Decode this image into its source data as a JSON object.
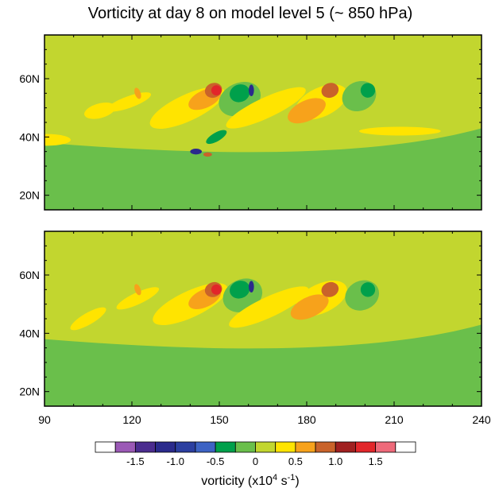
{
  "chart_data": {
    "type": "heatmap",
    "title": "Vorticity at day 8 on model level 5 (~ 850 hPa)",
    "panels": [
      {
        "name": "top",
        "xlim": [
          90,
          240
        ],
        "ylim": [
          15,
          75
        ],
        "y_tick_labels": [
          "20N",
          "40N",
          "60N"
        ],
        "y_ticks": [
          20,
          40,
          60
        ],
        "features": [
          {
            "lon": 91,
            "lat": 39,
            "w": 16,
            "h": 4,
            "tilt": 0,
            "level": 0.25
          },
          {
            "lon": 109,
            "lat": 49,
            "w": 11,
            "h": 5,
            "tilt": -15,
            "level": 0.25
          },
          {
            "lon": 119,
            "lat": 52,
            "w": 16,
            "h": 4,
            "tilt": -20,
            "level": 0.25
          },
          {
            "lon": 122,
            "lat": 55,
            "w": 2,
            "h": 4,
            "tilt": -20,
            "level": 0.5
          },
          {
            "lon": 139,
            "lat": 50,
            "w": 28,
            "h": 9,
            "tilt": -25,
            "level": 0.25
          },
          {
            "lon": 145,
            "lat": 53,
            "w": 12,
            "h": 6,
            "tilt": -25,
            "level": 0.5
          },
          {
            "lon": 148,
            "lat": 56,
            "w": 6,
            "h": 5,
            "tilt": -20,
            "level": 0.75
          },
          {
            "lon": 149,
            "lat": 56,
            "w": 3.5,
            "h": 3.5,
            "tilt": -10,
            "level": 1.25
          },
          {
            "lon": 157,
            "lat": 53,
            "w": 15,
            "h": 11,
            "tilt": -25,
            "level": -0.25
          },
          {
            "lon": 157,
            "lat": 55,
            "w": 7,
            "h": 6,
            "tilt": -20,
            "level": -0.5
          },
          {
            "lon": 161,
            "lat": 56,
            "w": 1.8,
            "h": 4,
            "tilt": 0,
            "level": -1.25
          },
          {
            "lon": 149,
            "lat": 40,
            "w": 8,
            "h": 3,
            "tilt": -30,
            "level": -0.5
          },
          {
            "lon": 142,
            "lat": 35,
            "w": 4,
            "h": 2,
            "tilt": 0,
            "level": -1.25
          },
          {
            "lon": 146,
            "lat": 34,
            "w": 3,
            "h": 1.5,
            "tilt": 0,
            "level": 0.75
          },
          {
            "lon": 166,
            "lat": 50,
            "w": 30,
            "h": 7,
            "tilt": -25,
            "level": 0.25
          },
          {
            "lon": 185,
            "lat": 52,
            "w": 19,
            "h": 10,
            "tilt": -25,
            "level": 0.25
          },
          {
            "lon": 180,
            "lat": 49,
            "w": 14,
            "h": 7,
            "tilt": -25,
            "level": 0.5
          },
          {
            "lon": 188,
            "lat": 56,
            "w": 6,
            "h": 5,
            "tilt": -20,
            "level": 0.75
          },
          {
            "lon": 198,
            "lat": 54,
            "w": 12,
            "h": 10,
            "tilt": -25,
            "level": -0.25
          },
          {
            "lon": 201,
            "lat": 56,
            "w": 5,
            "h": 5,
            "tilt": -20,
            "level": -0.5
          },
          {
            "lon": 212,
            "lat": 42,
            "w": 28,
            "h": 3,
            "tilt": 0,
            "level": 0.25
          }
        ]
      },
      {
        "name": "bottom",
        "xlim": [
          90,
          240
        ],
        "ylim": [
          15,
          75
        ],
        "x_tick_labels": [
          "90",
          "120",
          "150",
          "180",
          "210",
          "240"
        ],
        "x_ticks": [
          90,
          120,
          150,
          180,
          210,
          240
        ],
        "y_tick_labels": [
          "20N",
          "40N",
          "60N"
        ],
        "y_ticks": [
          20,
          40,
          60
        ],
        "features": [
          {
            "lon": 105,
            "lat": 45,
            "w": 14,
            "h": 4,
            "tilt": -30,
            "level": 0.25
          },
          {
            "lon": 122,
            "lat": 52,
            "w": 16,
            "h": 4,
            "tilt": -25,
            "level": 0.25
          },
          {
            "lon": 122,
            "lat": 55,
            "w": 2,
            "h": 4,
            "tilt": -20,
            "level": 0.5
          },
          {
            "lon": 140,
            "lat": 50,
            "w": 28,
            "h": 9,
            "tilt": -25,
            "level": 0.25
          },
          {
            "lon": 145,
            "lat": 52,
            "w": 12,
            "h": 6,
            "tilt": -25,
            "level": 0.5
          },
          {
            "lon": 148,
            "lat": 55,
            "w": 6,
            "h": 5,
            "tilt": -20,
            "level": 0.75
          },
          {
            "lon": 149,
            "lat": 55,
            "w": 3.5,
            "h": 3.5,
            "tilt": -10,
            "level": 1.25
          },
          {
            "lon": 158,
            "lat": 53,
            "w": 14,
            "h": 11,
            "tilt": -25,
            "level": -0.25
          },
          {
            "lon": 157,
            "lat": 55,
            "w": 7,
            "h": 6,
            "tilt": -20,
            "level": -0.5
          },
          {
            "lon": 161,
            "lat": 56,
            "w": 1.8,
            "h": 4,
            "tilt": 0,
            "level": -1.25
          },
          {
            "lon": 167,
            "lat": 49,
            "w": 30,
            "h": 7,
            "tilt": -25,
            "level": 0.25
          },
          {
            "lon": 185,
            "lat": 52,
            "w": 19,
            "h": 10,
            "tilt": -25,
            "level": 0.25
          },
          {
            "lon": 181,
            "lat": 49,
            "w": 14,
            "h": 7,
            "tilt": -25,
            "level": 0.5
          },
          {
            "lon": 188,
            "lat": 55,
            "w": 6,
            "h": 5,
            "tilt": -20,
            "level": 0.75
          },
          {
            "lon": 199,
            "lat": 53,
            "w": 12,
            "h": 10,
            "tilt": -25,
            "level": -0.25
          },
          {
            "lon": 201,
            "lat": 55,
            "w": 5,
            "h": 5,
            "tilt": -20,
            "level": -0.5
          }
        ]
      }
    ],
    "colorbar": {
      "label": "vorticity (x10",
      "label_exp": "4",
      "label_unit": " s",
      "label_unit_exp": "-1",
      "label_close": ")",
      "tick_labels": [
        "-1.5",
        "-1.0",
        "-0.5",
        "0",
        "0.5",
        "1.0",
        "1.5"
      ],
      "bins": [
        {
          "level": -2.0,
          "color": "#ffffff"
        },
        {
          "level": -1.75,
          "color": "#9b59b6"
        },
        {
          "level": -1.5,
          "color": "#4b2c8f"
        },
        {
          "level": -1.25,
          "color": "#2a2a8c"
        },
        {
          "level": -1.0,
          "color": "#2b3fa0"
        },
        {
          "level": -0.75,
          "color": "#3d63c4"
        },
        {
          "level": -0.5,
          "color": "#00a04b"
        },
        {
          "level": -0.25,
          "color": "#6abf4b"
        },
        {
          "level": 0,
          "color": "#c2d62f"
        },
        {
          "level": 0.25,
          "color": "#ffe400"
        },
        {
          "level": 0.5,
          "color": "#f7a21b"
        },
        {
          "level": 0.75,
          "color": "#c9632a"
        },
        {
          "level": 1.0,
          "color": "#a02020"
        },
        {
          "level": 1.25,
          "color": "#e2262a"
        },
        {
          "level": 1.5,
          "color": "#ee6a7a"
        },
        {
          "level": 1.75,
          "color": "#ffffff"
        }
      ]
    },
    "background_color": "#c2d62f",
    "south_color": "#6abf4b"
  }
}
